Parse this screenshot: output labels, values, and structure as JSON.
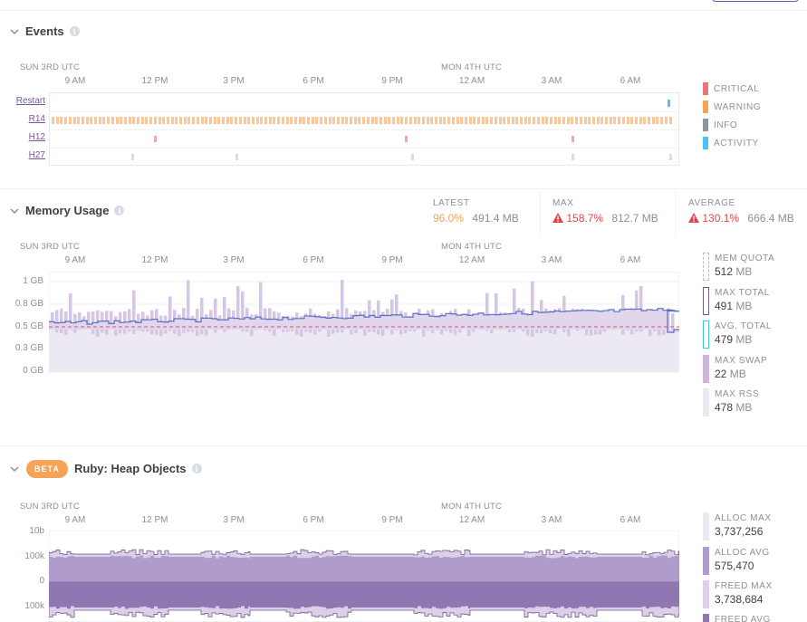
{
  "colors": {
    "critical": "#e4797a",
    "warning": "#f5a356",
    "info": "#8a96a5",
    "activity": "#4dc3ef",
    "quota": "#b8bcc4",
    "max_total": "#6f5b8c",
    "avg_total": "#3fc9d0",
    "max_swap": "#c9b6d9",
    "max_rss": "#ece9f2",
    "accent_purple": "#79589f"
  },
  "time_axis": {
    "day1": "SUN 3RD UTC",
    "day2": "MON 4TH UTC",
    "ticks": [
      "9 AM",
      "12 PM",
      "3 PM",
      "6 PM",
      "9 PM",
      "12 AM",
      "3 AM",
      "6 AM"
    ]
  },
  "events": {
    "title": "Events",
    "rows": [
      {
        "label": "Restart"
      },
      {
        "label": "R14"
      },
      {
        "label": "H12"
      },
      {
        "label": "H27"
      }
    ],
    "legend": [
      {
        "label": "CRITICAL",
        "color": "#e4797a"
      },
      {
        "label": "WARNING",
        "color": "#f5a356"
      },
      {
        "label": "INFO",
        "color": "#8a96a5"
      },
      {
        "label": "ACTIVITY",
        "color": "#4dc3ef"
      }
    ],
    "restart_positions": [
      0.985
    ],
    "h12_positions": [
      0.165,
      0.565,
      0.83
    ],
    "h27_positions": [
      0.13,
      0.295,
      0.575,
      0.83,
      0.985
    ]
  },
  "memory": {
    "title": "Memory Usage",
    "latest": {
      "label": "LATEST",
      "value": "96.0",
      "pct": "%",
      "mb": "491.4",
      "unit": "MB"
    },
    "max": {
      "label": "MAX",
      "value": "158.7",
      "pct": "%",
      "mb": "812.7",
      "unit": "MB"
    },
    "average": {
      "label": "AVERAGE",
      "value": "130.1",
      "pct": "%",
      "mb": "666.4",
      "unit": "MB"
    },
    "y_labels": [
      "1 GB",
      "0.8 GB",
      "0.5 GB",
      "0.3 GB",
      "0 GB"
    ],
    "legend": [
      {
        "label": "MEM QUOTA",
        "value": "512",
        "unit": "MB"
      },
      {
        "label": "MAX TOTAL",
        "value": "491",
        "unit": "MB"
      },
      {
        "label": "AVG. TOTAL",
        "value": "479",
        "unit": "MB"
      },
      {
        "label": "MAX SWAP",
        "value": "22",
        "unit": "MB"
      },
      {
        "label": "MAX RSS",
        "value": "478",
        "unit": "MB"
      }
    ]
  },
  "heap": {
    "badge": "BETA",
    "title": "Ruby: Heap Objects",
    "y_labels": [
      "10b",
      "100k",
      "0",
      "100k"
    ],
    "legend": [
      {
        "label": "ALLOC MAX",
        "value": "3,737,256"
      },
      {
        "label": "ALLOC AVG",
        "value": "575,470"
      },
      {
        "label": "FREED MAX",
        "value": "3,738,684"
      },
      {
        "label": "FREED AVG",
        "value": ""
      }
    ]
  }
}
